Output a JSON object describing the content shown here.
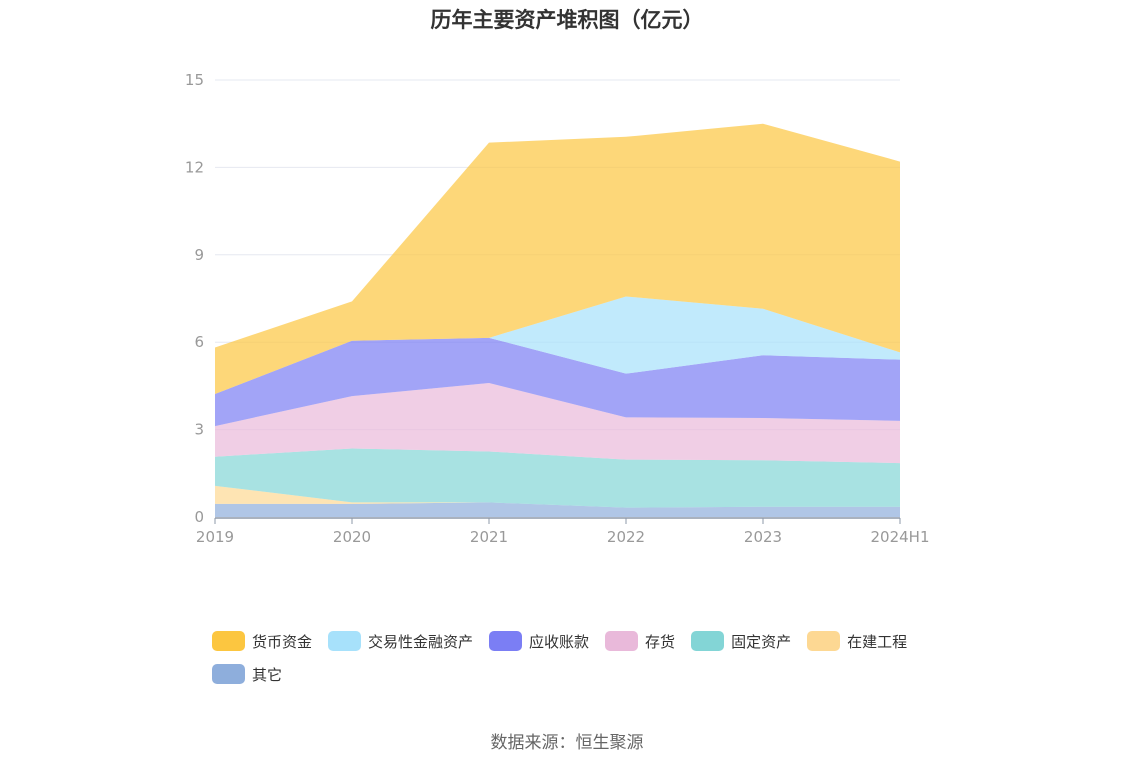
{
  "chart_data": {
    "type": "area",
    "stacked": true,
    "title": "历年主要资产堆积图（亿元）",
    "categories": [
      "2019",
      "2020",
      "2021",
      "2022",
      "2023",
      "2024H1"
    ],
    "ylim": [
      0,
      15
    ],
    "yticks": [
      "0",
      "3",
      "6",
      "9",
      "12",
      "15"
    ],
    "grid": true,
    "legend_position": "bottom",
    "series": [
      {
        "name": "其它",
        "color": "#8eaedc",
        "values": [
          0.45,
          0.45,
          0.5,
          0.32,
          0.35,
          0.35
        ]
      },
      {
        "name": "在建工程",
        "color": "#fdd893",
        "values": [
          0.62,
          0.05,
          0.0,
          0.0,
          0.0,
          0.0
        ]
      },
      {
        "name": "固定资产",
        "color": "#83d5d6",
        "values": [
          1.0,
          1.85,
          1.75,
          1.65,
          1.6,
          1.5
        ]
      },
      {
        "name": "存货",
        "color": "#e9b9da",
        "values": [
          1.05,
          1.8,
          2.35,
          1.45,
          1.45,
          1.45
        ]
      },
      {
        "name": "应收账款",
        "color": "#7b7ef4",
        "values": [
          1.1,
          1.9,
          1.55,
          1.5,
          2.15,
          2.1
        ]
      },
      {
        "name": "交易性金融资产",
        "color": "#a7e1fb",
        "values": [
          0.0,
          0.0,
          0.0,
          2.65,
          1.6,
          0.25
        ]
      },
      {
        "name": "货币资金",
        "color": "#fcc640",
        "values": [
          1.6,
          1.35,
          6.7,
          5.48,
          6.35,
          6.55
        ]
      }
    ]
  },
  "source": "数据来源：恒生聚源"
}
